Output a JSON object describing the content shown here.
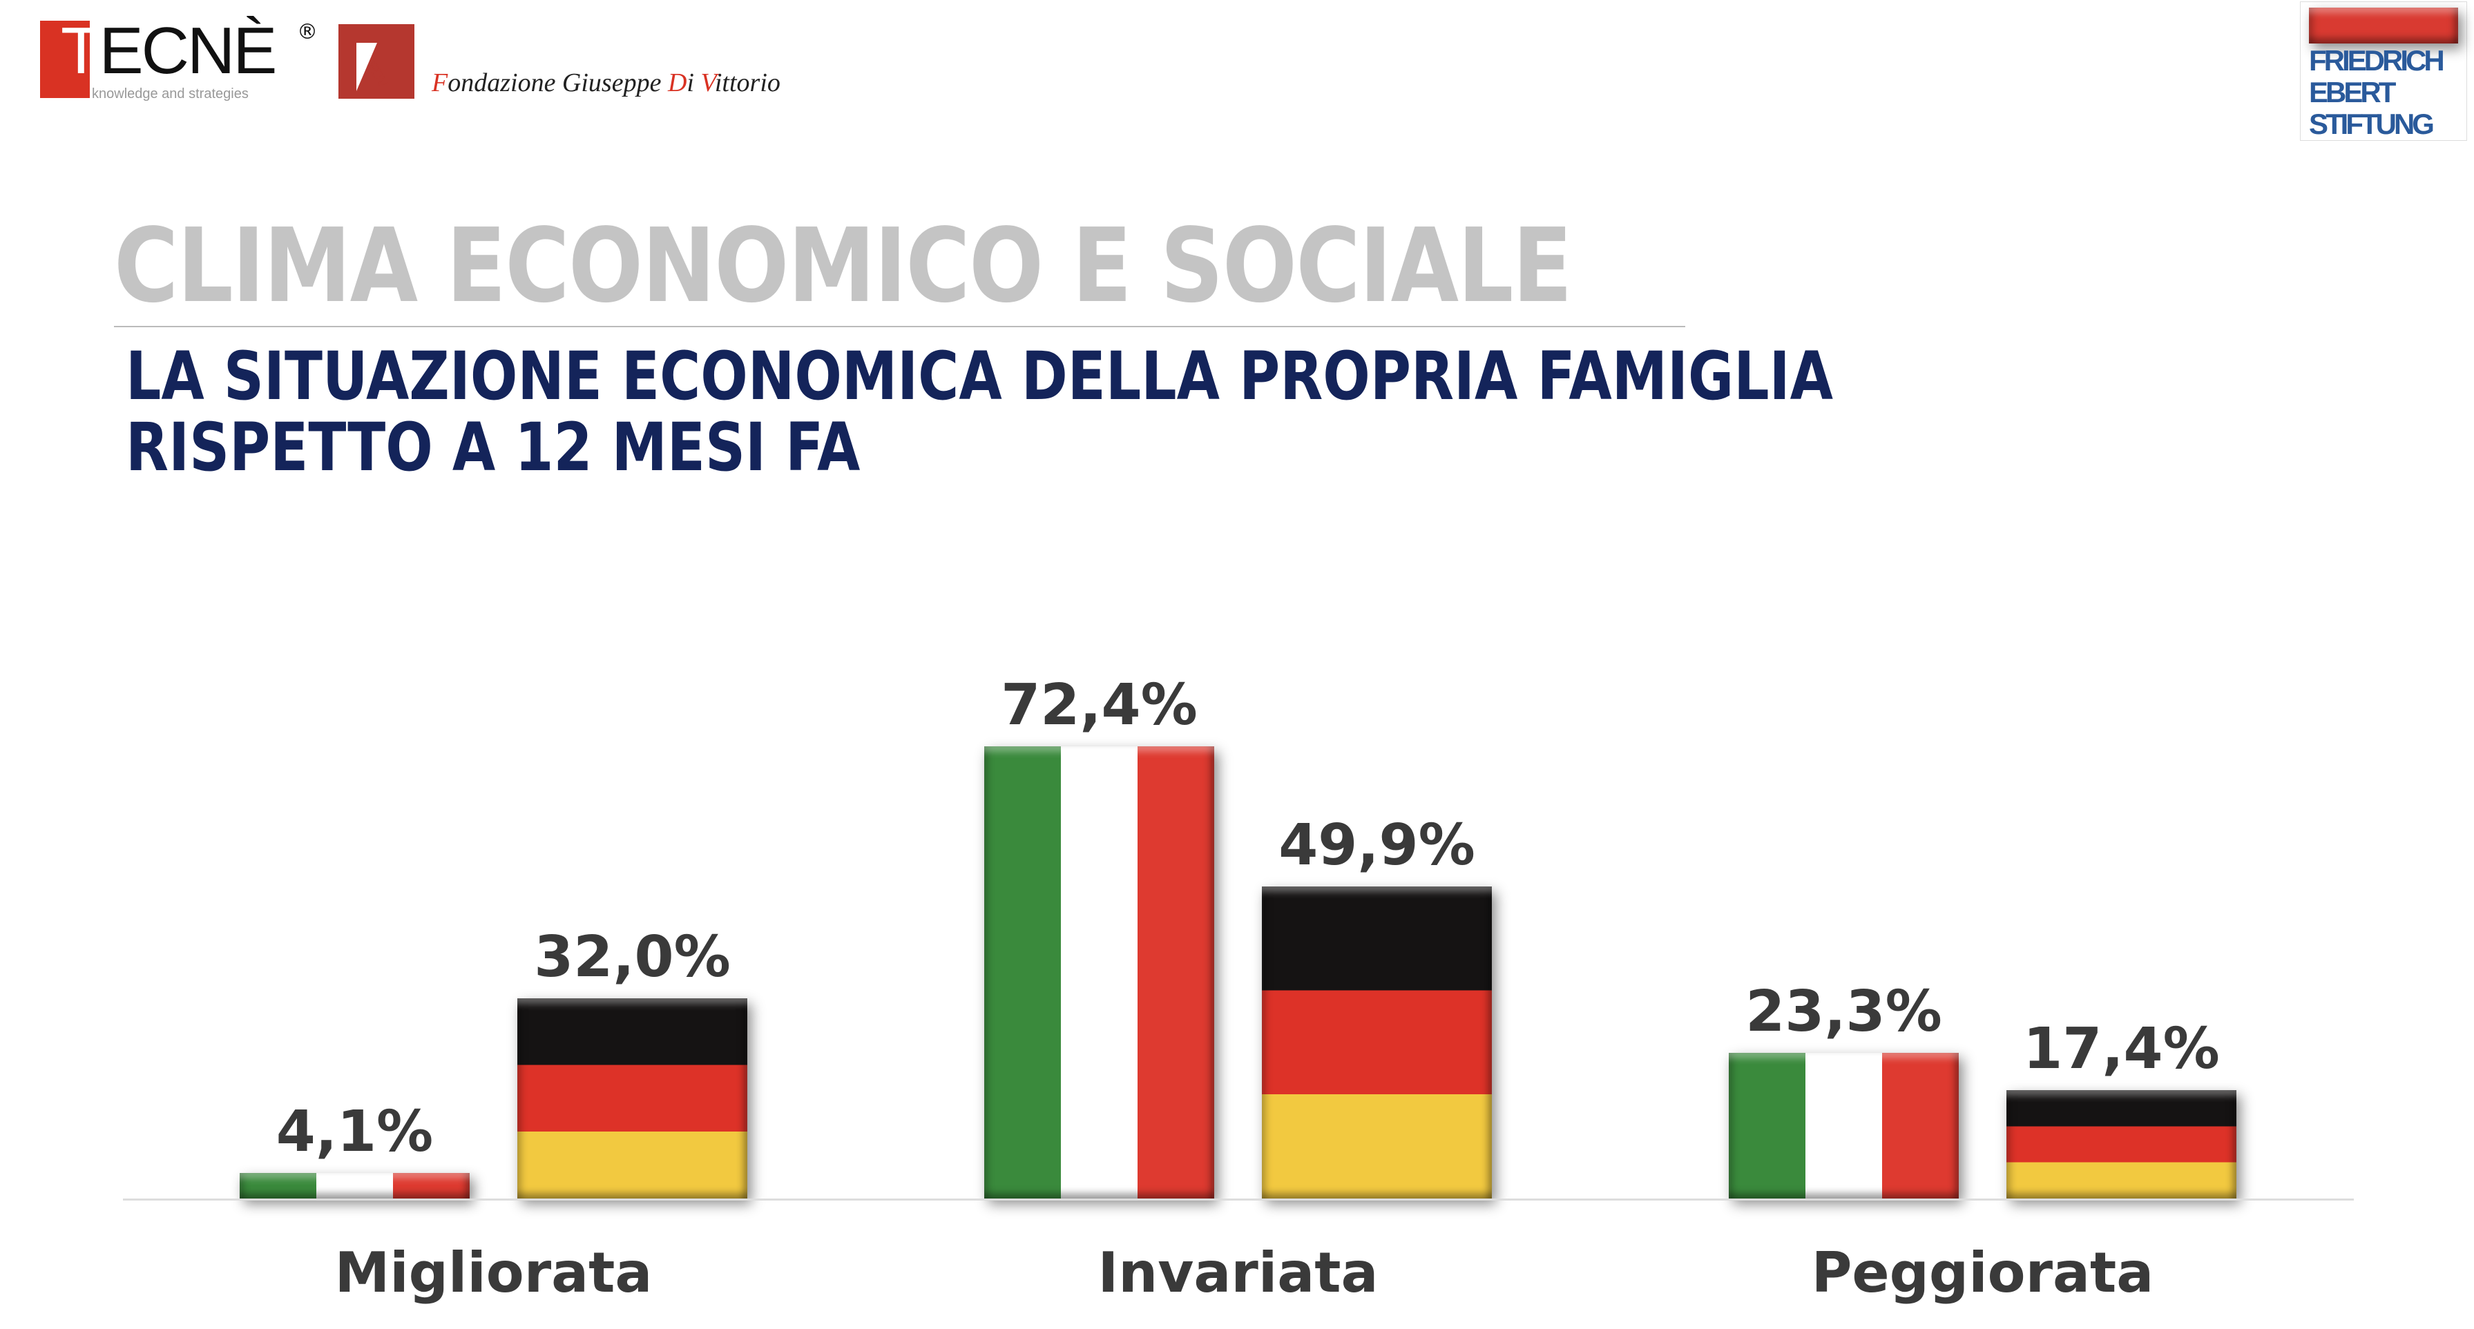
{
  "header": {
    "tecne_logo": {
      "brand": "TECNÈ",
      "registered": "®",
      "tagline": "knowledge and strategies"
    },
    "fdv_logo": {
      "mark": "FDV",
      "name_parts": [
        "F",
        "ondazione Giuseppe ",
        "D",
        "i ",
        "V",
        "ittorio"
      ]
    },
    "fes_logo": {
      "lines": [
        "FRIEDRICH",
        "EBERT",
        "STIFTUNG"
      ]
    }
  },
  "title": "CLIMA ECONOMICO E SOCIALE",
  "subtitle": [
    "LA SITUAZIONE ECONOMICA DELLA PROPRIA FAMIGLIA",
    "RISPETTO A 12 MESI FA"
  ],
  "colors": {
    "italy": [
      "#3a8a3c",
      "#ffffff",
      "#de3a30"
    ],
    "germany": [
      "#151313",
      "#dd3228",
      "#f2c940"
    ]
  },
  "chart_data": {
    "type": "bar",
    "title": "",
    "categories": [
      "Migliorata",
      "Invariata",
      "Peggiorata"
    ],
    "series": [
      {
        "name": "Italia",
        "values": [
          4.1,
          72.4,
          23.3
        ],
        "labels": [
          "4,1%",
          "72,4%",
          "23,3%"
        ]
      },
      {
        "name": "Germania",
        "values": [
          32.0,
          49.9,
          17.4
        ],
        "labels": [
          "32,0%",
          "49,9%",
          "17,4%"
        ]
      }
    ],
    "ylim": [
      0,
      100
    ],
    "xlabel": "",
    "ylabel": "",
    "grid": false
  }
}
